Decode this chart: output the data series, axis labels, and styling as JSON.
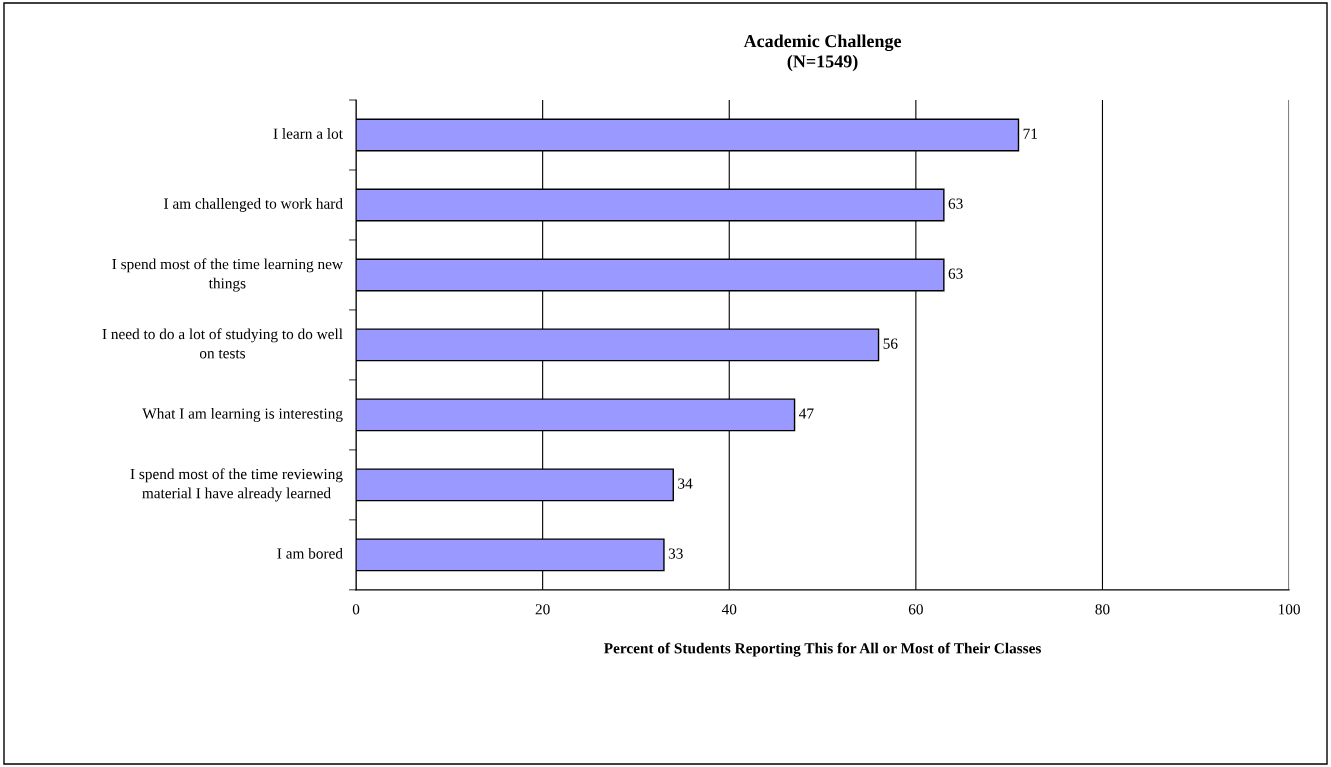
{
  "chart_data": {
    "type": "bar",
    "orientation": "horizontal",
    "title": "Academic Challenge\n(N=1549)",
    "xlabel": "Percent of Students Reporting This for All or Most of Their Classes",
    "categories": [
      "I learn a lot",
      "I am challenged to work hard",
      "I spend most of the time learning new things",
      "I need to do a lot of studying to do well on tests",
      "What I am learning is interesting",
      "I spend most of the time reviewing material I have already learned",
      "I am bored"
    ],
    "values": [
      71,
      63,
      63,
      56,
      47,
      34,
      33
    ],
    "color": "#9999ff",
    "xlim": [
      0,
      100
    ],
    "xticks": [
      0,
      20,
      40,
      60,
      80,
      100
    ],
    "grid": "x",
    "data_labels": true,
    "legend": false
  }
}
